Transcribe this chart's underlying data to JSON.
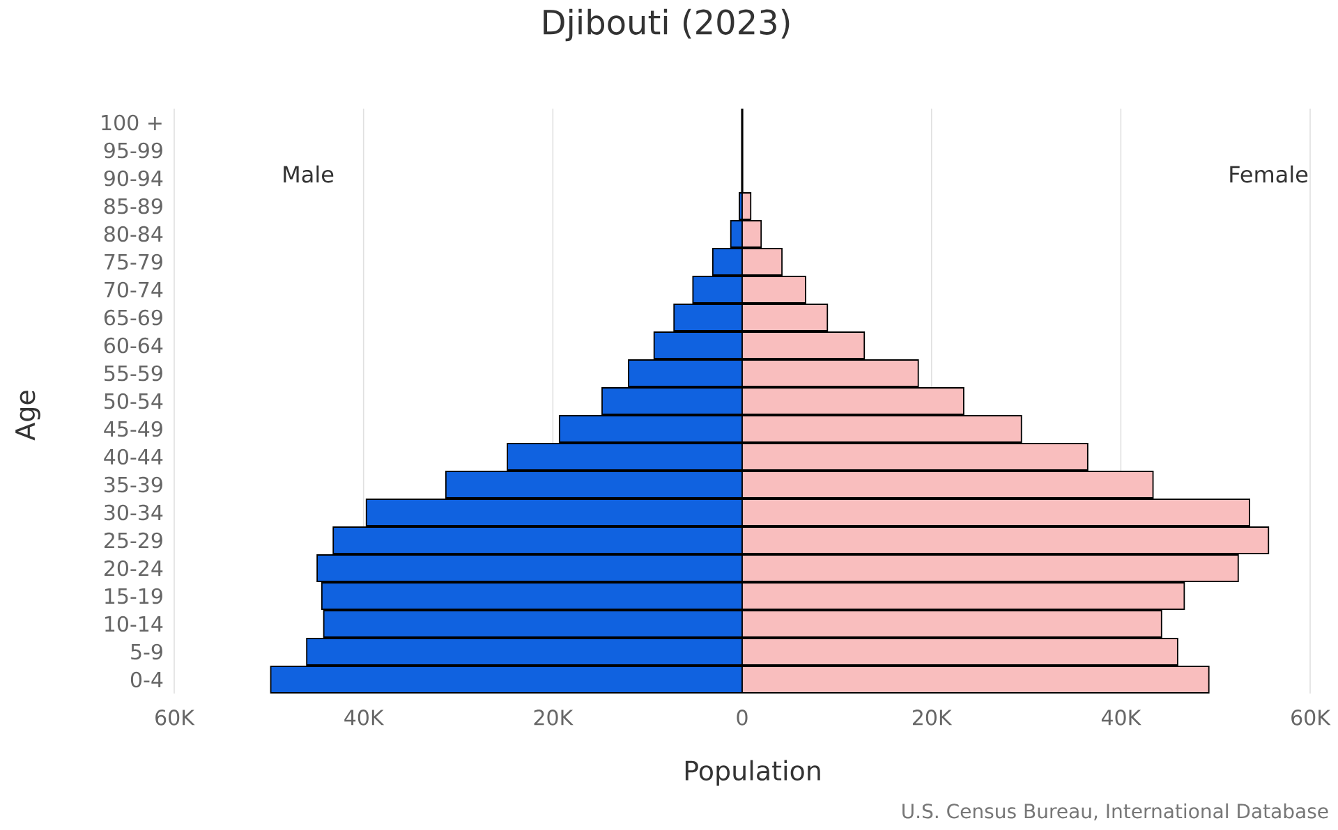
{
  "chart_data": {
    "type": "bar",
    "orientation": "horizontal",
    "title": "Djibouti (2023)",
    "xlabel": "Population",
    "ylabel": "Age",
    "categories": [
      "100 +",
      "95-99",
      "90-94",
      "85-89",
      "80-84",
      "75-79",
      "70-74",
      "65-69",
      "60-64",
      "55-59",
      "50-54",
      "45-49",
      "40-44",
      "35-39",
      "30-34",
      "25-29",
      "20-24",
      "15-19",
      "10-14",
      "5-9",
      "0-4"
    ],
    "series": [
      {
        "name": "Male",
        "color": "#1062e0",
        "values": [
          0,
          0,
          0,
          -300,
          -1200,
          -3100,
          -5200,
          -7200,
          -9300,
          -12000,
          -14800,
          -19300,
          -24800,
          -31300,
          -39700,
          -43200,
          -44900,
          -44400,
          -44200,
          -46000,
          -49800
        ]
      },
      {
        "name": "Female",
        "color": "#f9bebe",
        "values": [
          0,
          0,
          0,
          900,
          2000,
          4200,
          6700,
          9000,
          12900,
          18600,
          23400,
          29500,
          36500,
          43400,
          53600,
          55600,
          52400,
          46700,
          44300,
          46000,
          49300
        ]
      }
    ],
    "xlim": [
      -60000,
      60000
    ],
    "xticks": [
      {
        "value": -60000,
        "label": "60K"
      },
      {
        "value": -40000,
        "label": "40K"
      },
      {
        "value": -20000,
        "label": "20K"
      },
      0,
      {
        "value": 20000,
        "label": "20K"
      },
      {
        "value": 40000,
        "label": "40K"
      },
      {
        "value": 60000,
        "label": "60K"
      }
    ],
    "grid": "x",
    "stacked": true,
    "ref_lines": [
      {
        "axis": "x",
        "value": 0,
        "color": "#000000"
      }
    ],
    "annotations": [
      "U.S. Census Bureau, International Database"
    ]
  }
}
